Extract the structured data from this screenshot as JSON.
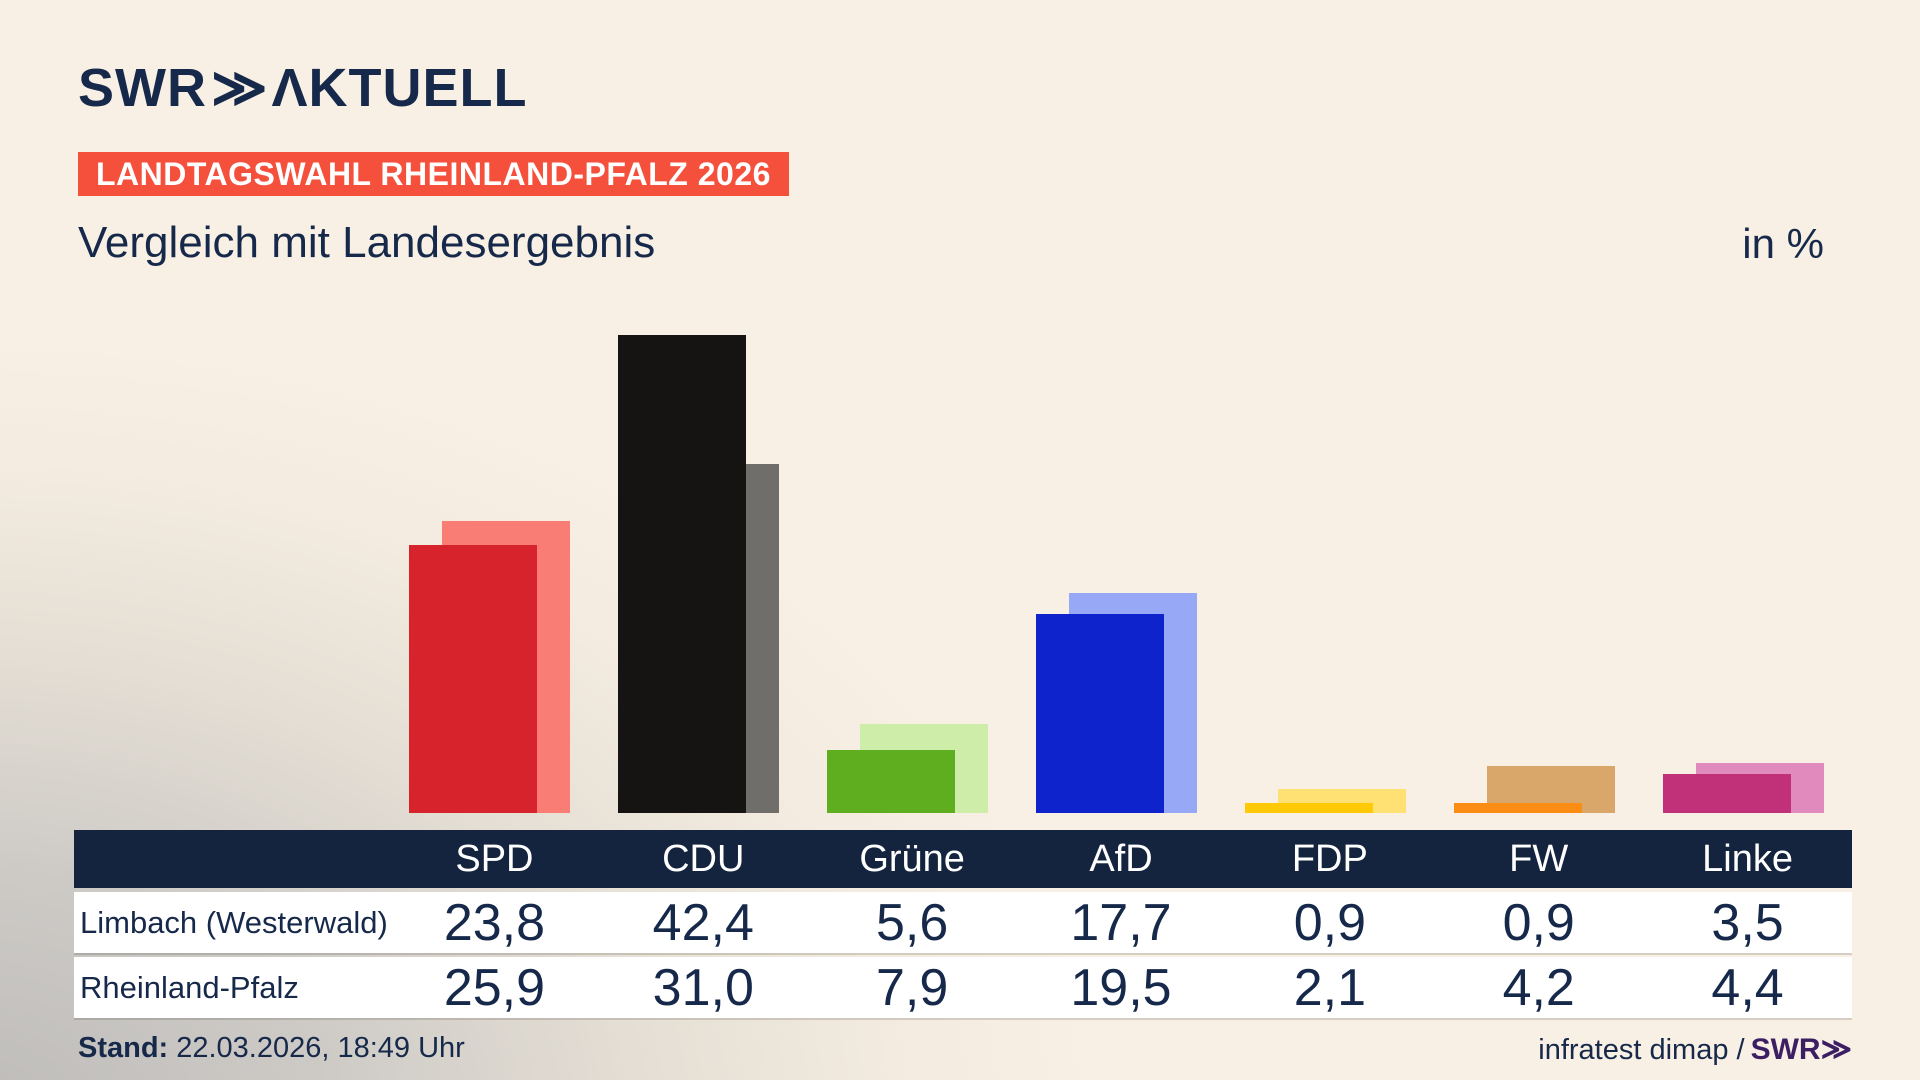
{
  "header": {
    "logo": {
      "brand": "SWR",
      "chevrons": "≫",
      "suffix": "ΛKTUELL"
    },
    "banner": "LANDTAGSWAHL RHEINLAND-PFALZ 2026",
    "title": "Vergleich mit Landesergebnis",
    "unit_label": "in %"
  },
  "chart_data": {
    "type": "bar",
    "categories": [
      "SPD",
      "CDU",
      "Grüne",
      "AfD",
      "FDP",
      "FW",
      "Linke"
    ],
    "series": [
      {
        "name": "Limbach (Westerwald)",
        "role": "front",
        "values": [
          23.8,
          42.4,
          5.6,
          17.7,
          0.9,
          0.9,
          3.5
        ],
        "colors": [
          "#d7232b",
          "#151413",
          "#5fae1f",
          "#0f23cd",
          "#ffc906",
          "#fb8d14",
          "#c03179"
        ]
      },
      {
        "name": "Rheinland-Pfalz",
        "role": "back",
        "values": [
          25.9,
          31.0,
          7.9,
          19.5,
          2.1,
          4.2,
          4.4
        ],
        "colors": [
          "#f97d75",
          "#706e6b",
          "#cdeda9",
          "#97a8f6",
          "#ffe173",
          "#d9a769",
          "#e18abd"
        ]
      }
    ],
    "unit": "%",
    "ylim": [
      0,
      45.5
    ],
    "grid": false,
    "legend_position": "table-below",
    "axis_labels_visible": false
  },
  "table": {
    "header_row": [
      "SPD",
      "CDU",
      "Grüne",
      "AfD",
      "FDP",
      "FW",
      "Linke"
    ],
    "rows": [
      {
        "label": "Limbach (Westerwald)",
        "values": [
          "23,8",
          "42,4",
          "5,6",
          "17,7",
          "0,9",
          "0,9",
          "3,5"
        ]
      },
      {
        "label": "Rheinland-Pfalz",
        "values": [
          "25,9",
          "31,0",
          "7,9",
          "19,5",
          "2,1",
          "4,2",
          "4,4"
        ]
      }
    ]
  },
  "footer": {
    "stand_label": "Stand:",
    "stand_value": "22.03.2026, 18:49 Uhr",
    "source": "infratest dimap /",
    "source_logo": "SWR≫"
  },
  "colors": {
    "background_cream": "#f8f0e4",
    "background_shadow": "#bdbbb9",
    "text_navy": "#17294a",
    "banner_red": "#f4503c",
    "table_header_navy": "#14243e",
    "row_white": "#ffffff",
    "swr_purple": "#3c1e63"
  }
}
